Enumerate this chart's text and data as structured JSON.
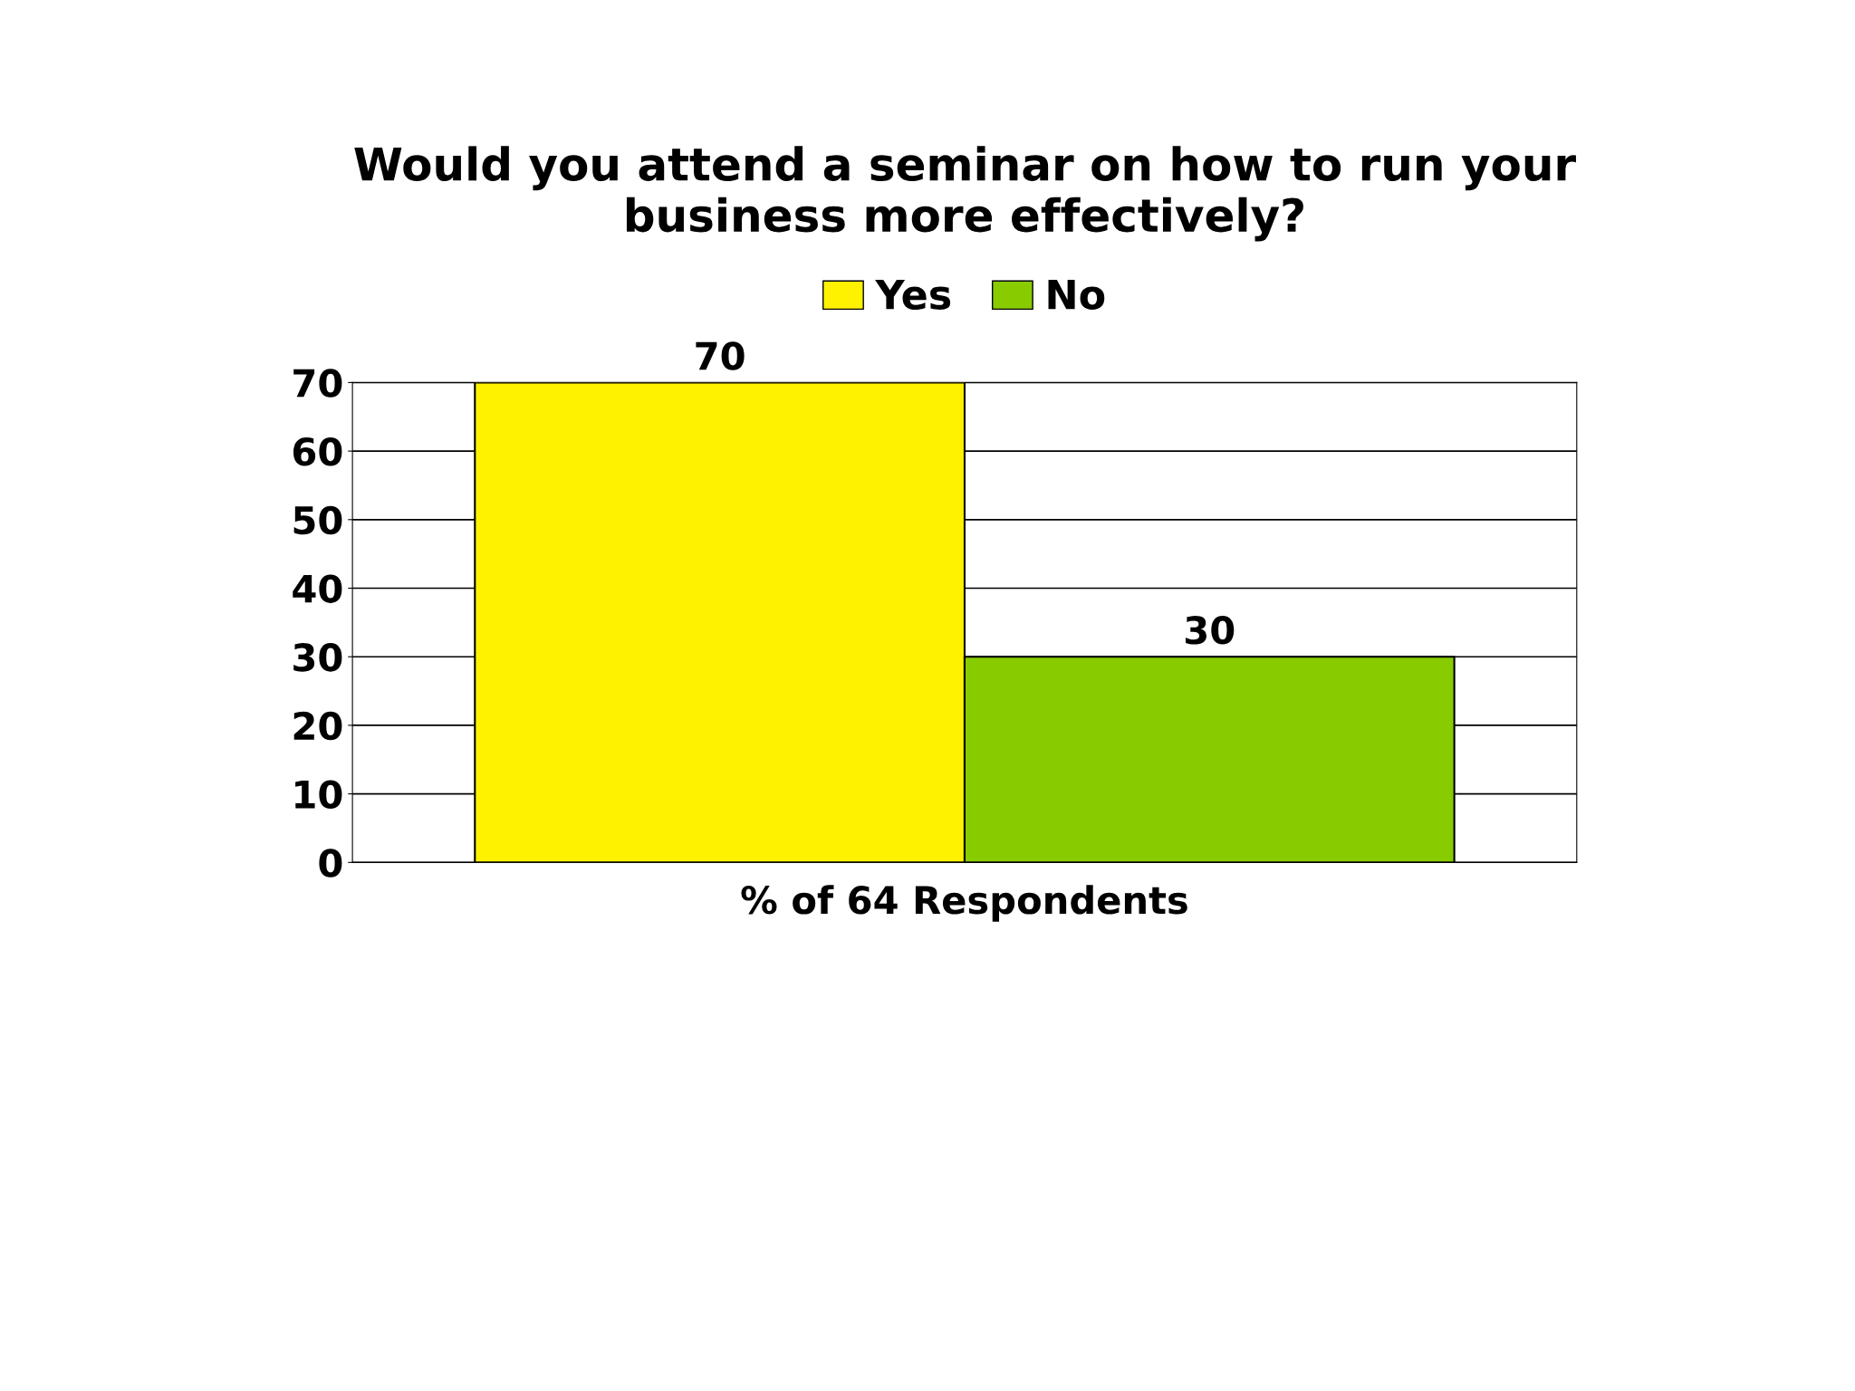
{
  "chart_data": {
    "type": "bar",
    "title": "Would you attend a seminar on how to run your\nbusiness more effectively?",
    "categories": [
      "% of 64 Respondents"
    ],
    "series": [
      {
        "name": "Yes",
        "color": "#fff200",
        "values": [
          70
        ]
      },
      {
        "name": "No",
        "color": "#88cc00",
        "values": [
          30
        ]
      }
    ],
    "ylim": [
      0,
      70
    ],
    "yticks": [
      0,
      10,
      20,
      30,
      40,
      50,
      60,
      70
    ],
    "grid": "y",
    "legend": "top",
    "data_labels": true
  }
}
